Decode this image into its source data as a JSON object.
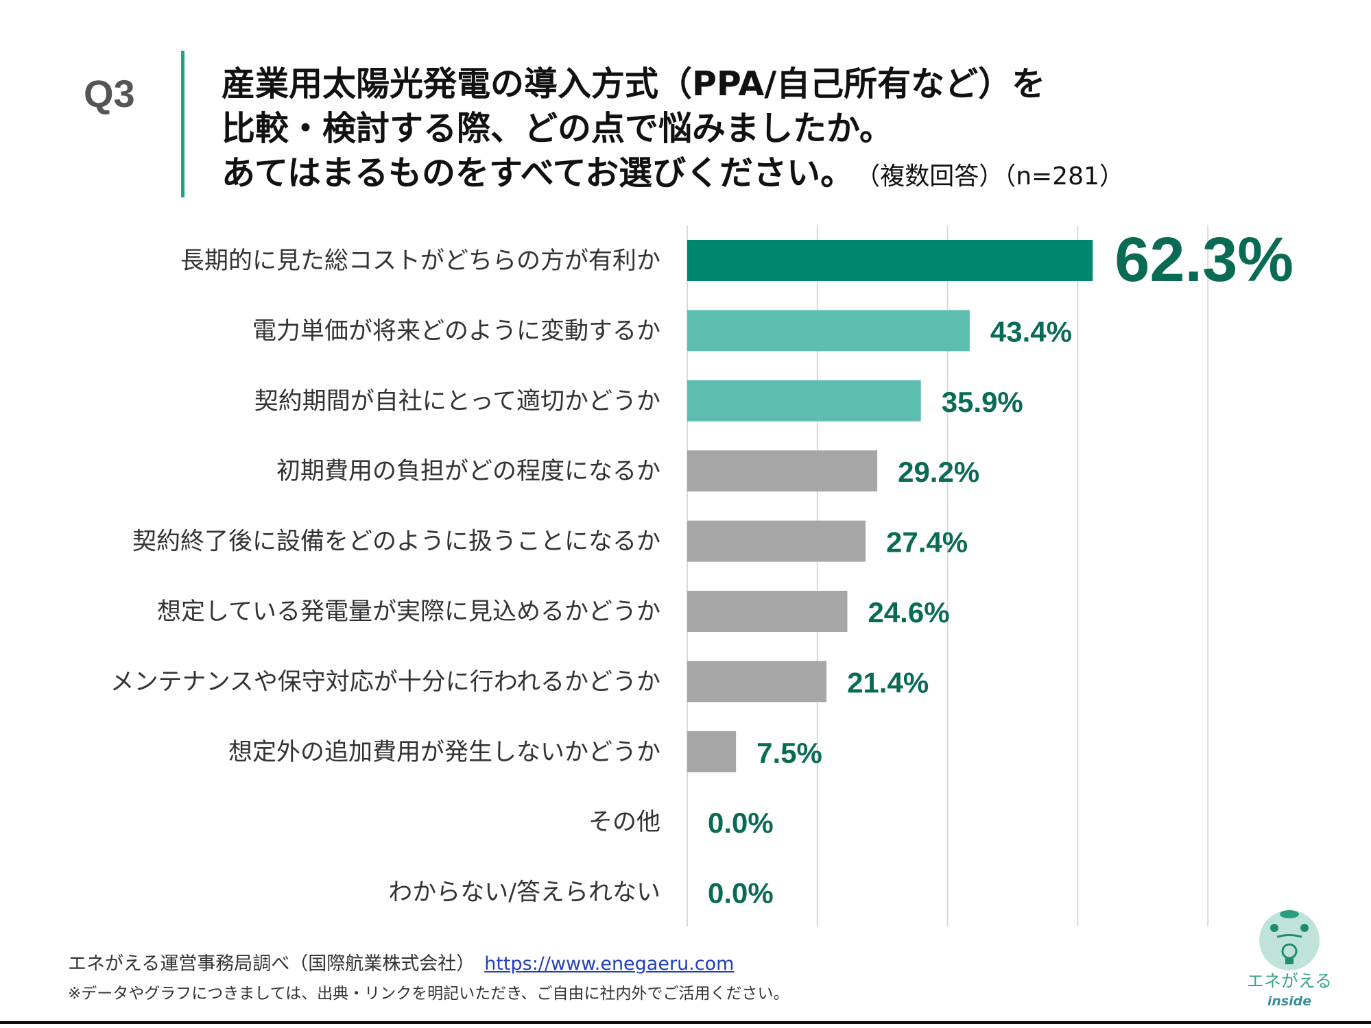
{
  "header": {
    "question_number": "Q3",
    "title_lines": [
      "産業用太陽光発電の導入方式（PPA/自己所有など）を",
      "比較・検討する際、どの点で悩みましたか。",
      "あてはまるものをすべてお選びください。"
    ],
    "subtitle": "（複数回答）（n=281）"
  },
  "chart_data": {
    "type": "bar",
    "orientation": "horizontal",
    "categories": [
      "長期的に見た総コストがどちらの方が有利か",
      "電力単価が将来どのように変動するか",
      "契約期間が自社にとって適切かどうか",
      "初期費用の負担がどの程度になるか",
      "契約終了後に設備をどのように扱うことになるか",
      "想定している発電量が実際に見込めるかどうか",
      "メンテナンスや保守対応が十分に行われるかどうか",
      "想定外の追加費用が発生しないかどうか",
      "その他",
      "わからない/答えられない"
    ],
    "values": [
      62.3,
      43.4,
      35.9,
      29.2,
      27.4,
      24.6,
      21.4,
      7.5,
      0.0,
      0.0
    ],
    "data_labels": [
      "62.3%",
      "43.4%",
      "35.9%",
      "29.2%",
      "27.4%",
      "24.6%",
      "21.4%",
      "7.5%",
      "0.0%",
      "0.0%"
    ],
    "unit": "%",
    "xlim": [
      0,
      80
    ],
    "grid": true,
    "gridlines": [
      0,
      20,
      40,
      60,
      80
    ],
    "colors": {
      "top": "#00876f",
      "highlight": "#5dbdb1",
      "other": "#a6a6a6",
      "label": "#0a6b55"
    }
  },
  "footer": {
    "source": "エネがえる運営事務局調べ（国際航業株式会社）",
    "link": "https://www.enegaeru.com",
    "note": "※データやグラフにつきましては、出典・リンクを明記いただき、ご自由に社内外でご活用ください。"
  },
  "logo": {
    "text": "エネがえる",
    "sub": "inside"
  }
}
